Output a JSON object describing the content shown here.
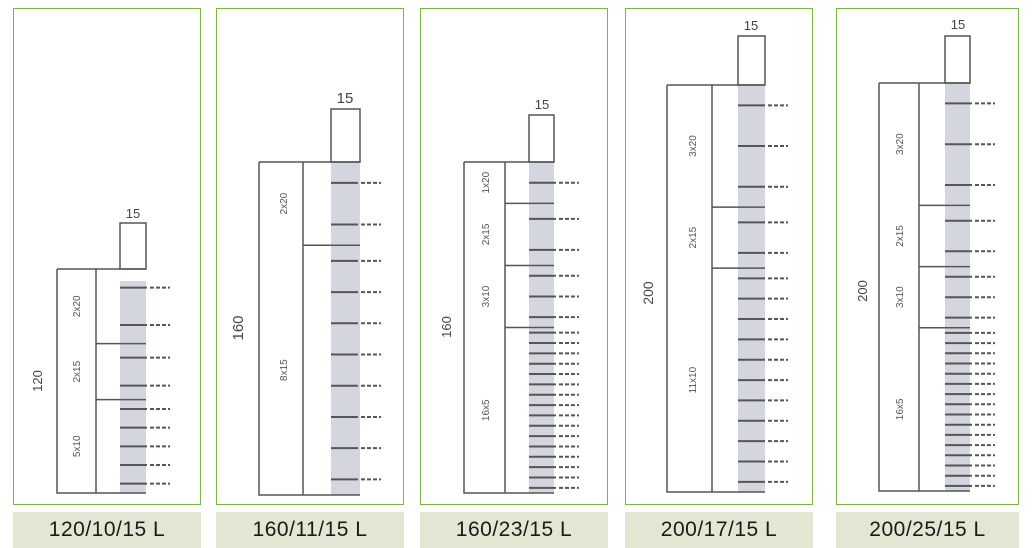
{
  "panels": [
    {
      "caption": "120/10/15 L",
      "height_label": "120",
      "width_label": "15",
      "groups": [
        {
          "label": "2x20",
          "count": 2
        },
        {
          "label": "2x15",
          "count": 2
        },
        {
          "label": "5x10",
          "count": 5
        }
      ]
    },
    {
      "caption": "160/11/15 L",
      "height_label": "160",
      "width_label": "15",
      "groups": [
        {
          "label": "2x20",
          "count": 2
        },
        {
          "label": "8x15",
          "count": 8
        }
      ]
    },
    {
      "caption": "160/23/15 L",
      "height_label": "160",
      "width_label": "15",
      "groups": [
        {
          "label": "1x20",
          "count": 1
        },
        {
          "label": "2x15",
          "count": 2
        },
        {
          "label": "3x10",
          "count": 3
        },
        {
          "label": "16x5",
          "count": 16
        }
      ]
    },
    {
      "caption": "200/17/15 L",
      "height_label": "200",
      "width_label": "15",
      "groups": [
        {
          "label": "3x20",
          "count": 3
        },
        {
          "label": "2x15",
          "count": 2
        },
        {
          "label": "11x10",
          "count": 11
        }
      ]
    },
    {
      "caption": "200/25/15 L",
      "height_label": "200",
      "width_label": "15",
      "groups": [
        {
          "label": "3x20",
          "count": 3
        },
        {
          "label": "2x15",
          "count": 2
        },
        {
          "label": "3x10",
          "count": 3
        },
        {
          "label": "16x5",
          "count": 16
        }
      ]
    }
  ]
}
